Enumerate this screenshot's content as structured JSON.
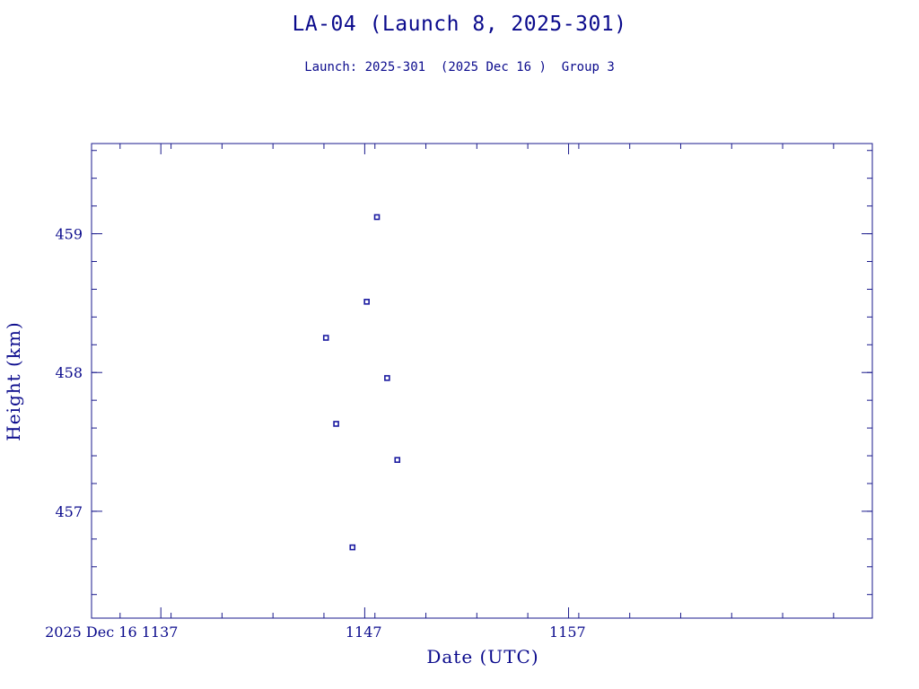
{
  "chart_data": {
    "type": "scatter",
    "title": "LA-04 (Launch 8, 2025-301)",
    "subtitle": "Launch: 2025-301  (2025 Dec 16 )  Group 3",
    "xlabel": "Date (UTC)",
    "ylabel": "Height (km)",
    "xlim": [
      1133.6,
      1171.9
    ],
    "ylim": [
      456.23,
      459.65
    ],
    "x_ticks": [
      {
        "value": 1137,
        "label": "2025 Dec 16  1137"
      },
      {
        "value": 1147,
        "label": "1147"
      },
      {
        "value": 1157,
        "label": "1157"
      }
    ],
    "x_minor_step": 2.5,
    "y_ticks": [
      {
        "value": 457,
        "label": "457"
      },
      {
        "value": 458,
        "label": "458"
      },
      {
        "value": 459,
        "label": "459"
      }
    ],
    "y_minor_step": 0.2,
    "grid": false,
    "colors": {
      "axis": "#1a1a8c",
      "text": "#0a0a8c",
      "marker": "#1a1aa0"
    },
    "points": [
      {
        "x": 1145.1,
        "y": 458.25
      },
      {
        "x": 1145.6,
        "y": 457.63
      },
      {
        "x": 1146.4,
        "y": 456.74
      },
      {
        "x": 1147.1,
        "y": 458.51
      },
      {
        "x": 1147.6,
        "y": 459.12
      },
      {
        "x": 1148.1,
        "y": 457.96
      },
      {
        "x": 1148.6,
        "y": 457.37
      }
    ]
  }
}
